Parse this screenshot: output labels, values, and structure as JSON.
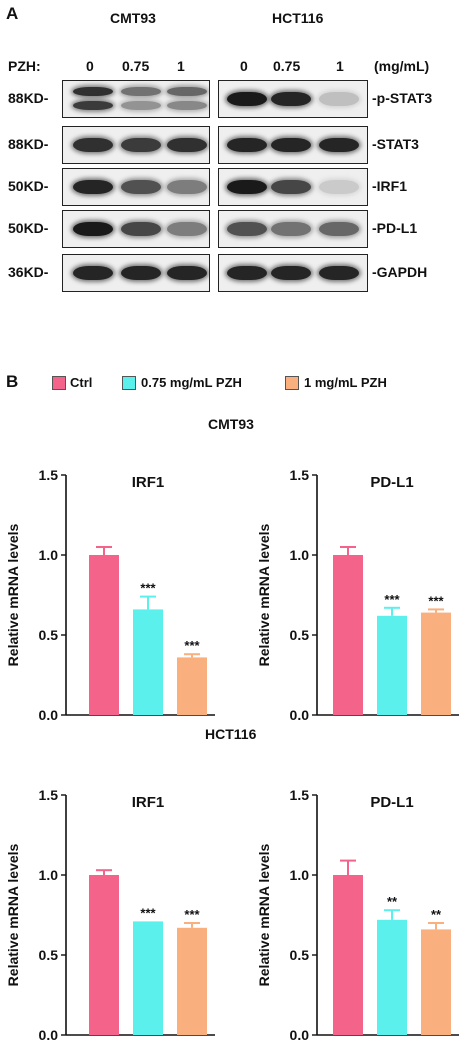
{
  "panel_a": {
    "label": "A",
    "cell_lines": [
      "CMT93",
      "HCT116"
    ],
    "pzh_label": "PZH:",
    "doses": [
      "0",
      "0.75",
      "1"
    ],
    "unit": "(mg/mL)",
    "blots": [
      {
        "kd": "88KD-",
        "protein": "-p-STAT3",
        "cmt93": [
          [
            0.85,
            0.8
          ],
          [
            0.55,
            0.4
          ],
          [
            0.6,
            0.45
          ]
        ],
        "hct116": [
          [
            0.95
          ],
          [
            0.9
          ],
          [
            0.2
          ]
        ]
      },
      {
        "kd": "88KD-",
        "protein": "-STAT3",
        "cmt93": [
          [
            0.85
          ],
          [
            0.8
          ],
          [
            0.85
          ]
        ],
        "hct116": [
          [
            0.9
          ],
          [
            0.9
          ],
          [
            0.9
          ]
        ]
      },
      {
        "kd": "50KD-",
        "protein": "-IRF1",
        "cmt93": [
          [
            0.9
          ],
          [
            0.7
          ],
          [
            0.5
          ]
        ],
        "hct116": [
          [
            0.95
          ],
          [
            0.75
          ],
          [
            0.15
          ]
        ]
      },
      {
        "kd": "50KD-",
        "protein": "-PD-L1",
        "cmt93": [
          [
            0.95
          ],
          [
            0.75
          ],
          [
            0.5
          ]
        ],
        "hct116": [
          [
            0.7
          ],
          [
            0.55
          ],
          [
            0.6
          ]
        ]
      },
      {
        "kd": "36KD-",
        "protein": "-GAPDH",
        "cmt93": [
          [
            0.9
          ],
          [
            0.9
          ],
          [
            0.9
          ]
        ],
        "hct116": [
          [
            0.9
          ],
          [
            0.9
          ],
          [
            0.9
          ]
        ]
      }
    ]
  },
  "panel_b": {
    "label": "B",
    "legend": [
      {
        "label": "Ctrl",
        "color": "#f4638a"
      },
      {
        "label": "0.75 mg/mL  PZH",
        "color": "#5cf0ec"
      },
      {
        "label": "1 mg/mL  PZH",
        "color": "#f9b07e"
      }
    ],
    "section_titles": [
      "CMT93",
      "HCT116"
    ]
  },
  "chart_data": [
    {
      "type": "bar",
      "group": "CMT93",
      "title": "IRF1",
      "ylabel": "Relative mRNA levels",
      "categories": [
        "Ctrl",
        "0.75 mg/mL PZH",
        "1 mg/mL PZH"
      ],
      "values": [
        1.0,
        0.66,
        0.36
      ],
      "errors": [
        0.05,
        0.08,
        0.02
      ],
      "significance": [
        "",
        "***",
        "***"
      ],
      "ylim": [
        0,
        1.5
      ],
      "yticks": [
        "0.0",
        "0.5",
        "1.0",
        "1.5"
      ],
      "colors": [
        "#f4638a",
        "#5cf0ec",
        "#f9b07e"
      ]
    },
    {
      "type": "bar",
      "group": "CMT93",
      "title": "PD-L1",
      "ylabel": "Relative mRNA levels",
      "categories": [
        "Ctrl",
        "0.75 mg/mL PZH",
        "1 mg/mL PZH"
      ],
      "values": [
        1.0,
        0.62,
        0.64
      ],
      "errors": [
        0.05,
        0.05,
        0.02
      ],
      "significance": [
        "",
        "***",
        "***"
      ],
      "ylim": [
        0,
        1.5
      ],
      "yticks": [
        "0.0",
        "0.5",
        "1.0",
        "1.5"
      ],
      "colors": [
        "#f4638a",
        "#5cf0ec",
        "#f9b07e"
      ]
    },
    {
      "type": "bar",
      "group": "HCT116",
      "title": "IRF1",
      "ylabel": "Relative mRNA levels",
      "categories": [
        "Ctrl",
        "0.75 mg/mL PZH",
        "1 mg/mL PZH"
      ],
      "values": [
        1.0,
        0.71,
        0.67
      ],
      "errors": [
        0.03,
        0.0,
        0.03
      ],
      "significance": [
        "",
        "***",
        "***"
      ],
      "ylim": [
        0,
        1.5
      ],
      "yticks": [
        "0.0",
        "0.5",
        "1.0",
        "1.5"
      ],
      "colors": [
        "#f4638a",
        "#5cf0ec",
        "#f9b07e"
      ]
    },
    {
      "type": "bar",
      "group": "HCT116",
      "title": "PD-L1",
      "ylabel": "Relative mRNA levels",
      "categories": [
        "Ctrl",
        "0.75 mg/mL PZH",
        "1 mg/mL PZH"
      ],
      "values": [
        1.0,
        0.72,
        0.66
      ],
      "errors": [
        0.09,
        0.06,
        0.04
      ],
      "significance": [
        "",
        "**",
        "**"
      ],
      "ylim": [
        0,
        1.5
      ],
      "yticks": [
        "0.0",
        "0.5",
        "1.0",
        "1.5"
      ],
      "colors": [
        "#f4638a",
        "#5cf0ec",
        "#f9b07e"
      ]
    }
  ]
}
